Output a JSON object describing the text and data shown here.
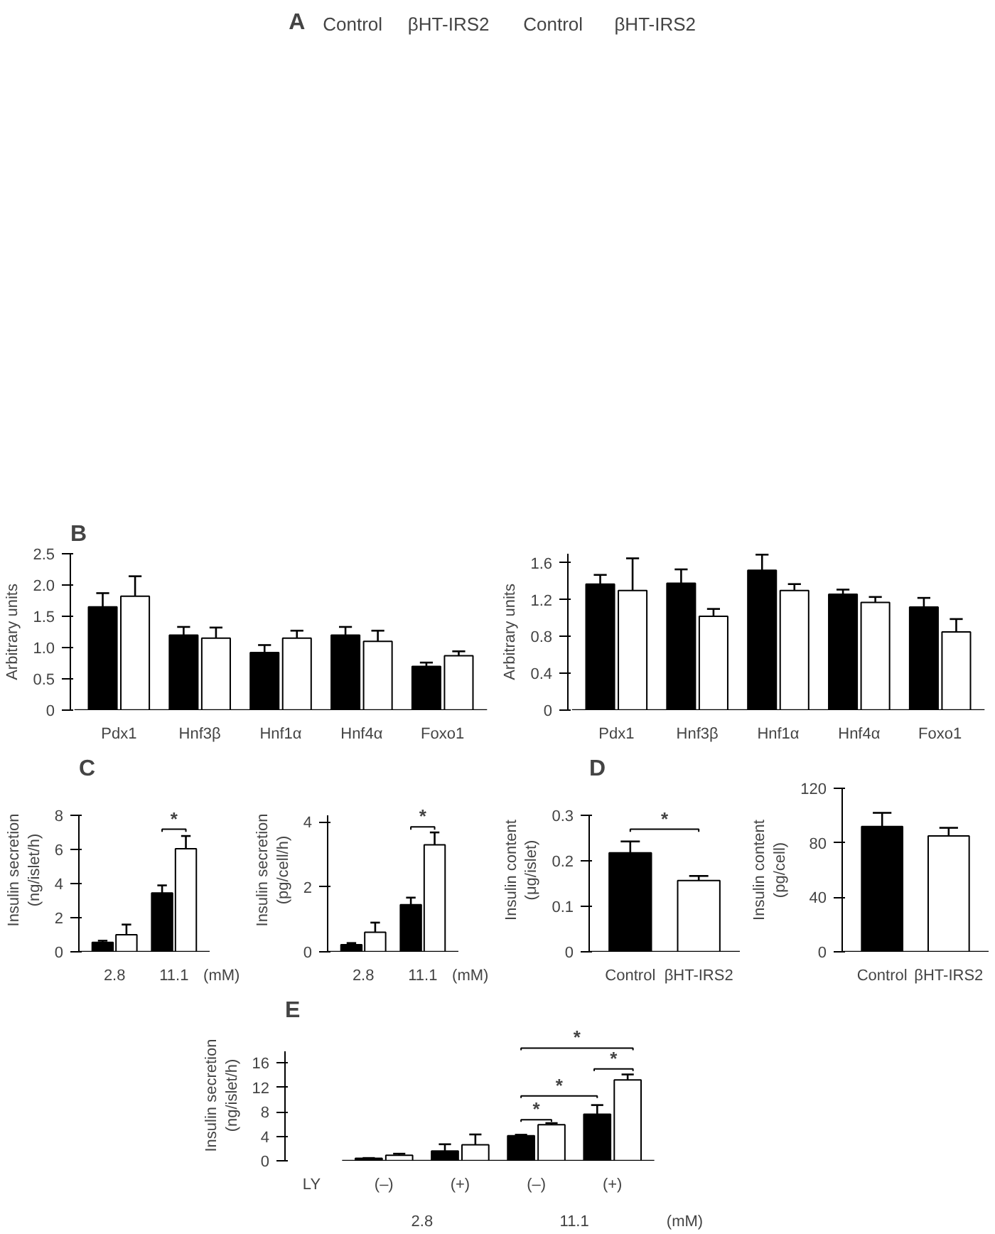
{
  "chart_data": [
    {
      "type": "other",
      "title": "A",
      "annotations": [
        "Control",
        "βHT-IRS2",
        "Control",
        "βHT-IRS2"
      ]
    },
    {
      "type": "bar",
      "title": "B",
      "ylabel": "Arbitrary units",
      "categories": [
        "Pdx1",
        "Hnf3β",
        "Hnf1α",
        "Hnf4α",
        "Foxo1"
      ],
      "ylim": [
        0,
        2.5
      ],
      "yticks": [
        0,
        0.5,
        {
          "value": 1,
          "label": "1.0"
        },
        1.5,
        {
          "value": 2,
          "label": "2.0"
        },
        2.5
      ],
      "series": [
        {
          "color": "#000000",
          "values": [
            1.65,
            1.2,
            0.92,
            1.2,
            0.7
          ],
          "errors": [
            0.22,
            0.13,
            0.12,
            0.13,
            0.06
          ]
        },
        {
          "color": "#ffffff",
          "values": [
            1.82,
            1.15,
            1.15,
            1.1,
            0.87
          ],
          "errors": [
            0.32,
            0.17,
            0.12,
            0.17,
            0.07
          ]
        }
      ]
    },
    {
      "type": "bar",
      "ylabel": "Arbitrary units",
      "categories": [
        "Pdx1",
        "Hnf3β",
        "Hnf1α",
        "Hnf4α",
        "Foxo1"
      ],
      "ylim": [
        0,
        1.7
      ],
      "yticks": [
        0,
        0.4,
        0.8,
        1.2,
        1.6
      ],
      "series": [
        {
          "color": "#000000",
          "values": [
            1.37,
            1.38,
            1.52,
            1.26,
            1.12
          ],
          "errors": [
            0.1,
            0.15,
            0.17,
            0.05,
            0.1
          ]
        },
        {
          "color": "#ffffff",
          "values": [
            1.3,
            1.02,
            1.3,
            1.17,
            0.85
          ],
          "errors": [
            0.35,
            0.08,
            0.07,
            0.06,
            0.14
          ]
        }
      ]
    },
    {
      "type": "bar",
      "title": "C",
      "ylabel": "Insulin secretion\n(ng/islet/h)",
      "categories": [
        "2.8",
        "11.1"
      ],
      "ylim": [
        0,
        8
      ],
      "yticks": [
        0,
        2,
        4,
        6,
        8
      ],
      "annotations": [
        "*",
        "(mM)"
      ],
      "series": [
        {
          "color": "#000000",
          "values": [
            0.55,
            3.45
          ],
          "errors": [
            0.1,
            0.45
          ]
        },
        {
          "color": "#ffffff",
          "values": [
            1.0,
            6.05
          ],
          "errors": [
            0.6,
            0.75
          ]
        }
      ]
    },
    {
      "type": "bar",
      "ylabel": "Insulin secretion\n(pg/cell/h)",
      "categories": [
        "2.8",
        "11.1"
      ],
      "ylim": [
        0,
        4.2
      ],
      "yticks": [
        0,
        2,
        4
      ],
      "annotations": [
        "*",
        "(mM)"
      ],
      "series": [
        {
          "color": "#000000",
          "values": [
            0.22,
            1.45
          ],
          "errors": [
            0.05,
            0.22
          ]
        },
        {
          "color": "#ffffff",
          "values": [
            0.6,
            3.3
          ],
          "errors": [
            0.3,
            0.38
          ]
        }
      ]
    },
    {
      "type": "bar",
      "title": "D",
      "ylabel": "Insulin content\n(μg/islet)",
      "categories": [
        "Control",
        "βHT-IRS2"
      ],
      "ylim": [
        0,
        0.3
      ],
      "yticks": [
        0,
        0.1,
        0.2,
        0.3
      ],
      "annotations": [
        "*"
      ],
      "values": [
        0.218,
        0.157
      ],
      "errors": [
        0.025,
        0.01
      ],
      "colors": [
        "#000000",
        "#ffffff"
      ]
    },
    {
      "type": "bar",
      "ylabel": "Insulin content\n(pg/cell)",
      "categories": [
        "Control",
        "βHT-IRS2"
      ],
      "ylim": [
        0,
        120
      ],
      "yticks": [
        0,
        40,
        80,
        120
      ],
      "values": [
        92,
        85
      ],
      "errors": [
        10,
        6
      ],
      "colors": [
        "#000000",
        "#ffffff"
      ]
    },
    {
      "type": "bar",
      "title": "E",
      "ylabel": "Insulin secretion\n(ng/islet/h)",
      "categories": [
        "(–)",
        "(+)",
        "(–)",
        "(+)"
      ],
      "ylim": [
        0,
        17.8
      ],
      "yticks": [
        0,
        4,
        8,
        12,
        16
      ],
      "annotations": [
        "*",
        "*",
        "*",
        "*",
        "LY",
        "2.8",
        "11.1",
        "(mM)"
      ],
      "series": [
        {
          "color": "#000000",
          "values": [
            0.4,
            1.6,
            4.1,
            7.6
          ],
          "errors": [
            0.05,
            1.1,
            0.15,
            1.5
          ]
        },
        {
          "color": "#ffffff",
          "values": [
            0.9,
            2.6,
            5.9,
            13.2
          ],
          "errors": [
            0.25,
            1.7,
            0.25,
            0.9
          ]
        }
      ]
    }
  ]
}
